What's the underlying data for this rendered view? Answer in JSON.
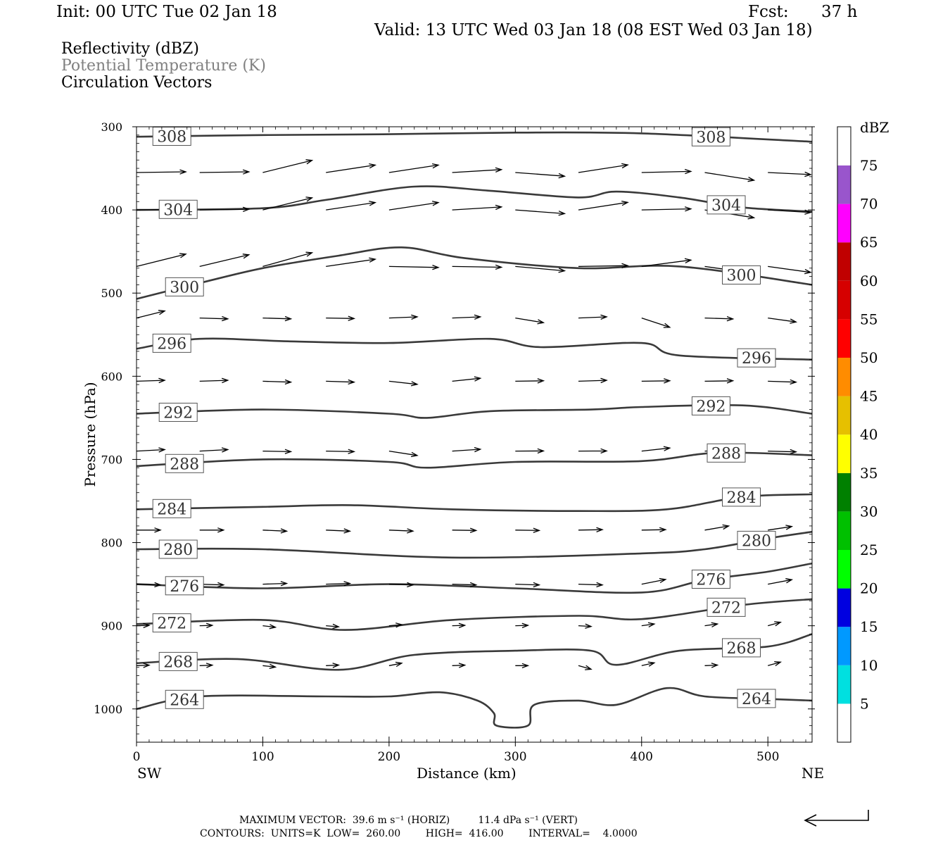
{
  "header": {
    "init": "Init: 00 UTC Tue 02 Jan 18",
    "fcst_label": "Fcst:",
    "fcst_value": "37 h",
    "valid": "Valid: 13 UTC Wed 03 Jan 18 (08 EST Wed 03 Jan 18)",
    "fields": [
      "Reflectivity (dBZ)",
      "Potential Temperature (K)",
      "Circulation Vectors"
    ]
  },
  "footer": {
    "line1": "MAXIMUM VECTOR:  39.6 m s⁻¹ (HORIZ)         11.4 dPa s⁻¹ (VERT)",
    "line2": "CONTOURS:  UNITS=K  LOW=  260.00        HIGH=  416.00        INTERVAL=    4.0000"
  },
  "chart_data": {
    "type": "line",
    "title": "",
    "xlabel": "Distance (km)",
    "ylabel": "Pressure (hPa)",
    "xlim": [
      0,
      535
    ],
    "ylim": [
      1040,
      300
    ],
    "y_reversed": true,
    "x_ticks": [
      0,
      100,
      200,
      300,
      400,
      500
    ],
    "y_ticks": [
      300,
      400,
      500,
      600,
      700,
      800,
      900,
      1000
    ],
    "x_end_labels": {
      "left": "SW",
      "right": "NE"
    },
    "colorbar": {
      "unit": "dBZ",
      "levels": [
        "5",
        "10",
        "15",
        "20",
        "25",
        "30",
        "35",
        "40",
        "45",
        "50",
        "55",
        "60",
        "65",
        "70",
        "75"
      ],
      "colors": [
        "#00e0e0",
        "#0099ff",
        "#0000e0",
        "#00ff00",
        "#00c000",
        "#008000",
        "#ffff00",
        "#e6c000",
        "#ff8c00",
        "#ff0000",
        "#d60000",
        "#c00000",
        "#ff00ff",
        "#9955cc"
      ]
    },
    "series": [
      {
        "label": "308",
        "values": [
          [
            0,
            312
          ],
          [
            100,
            310
          ],
          [
            200,
            309
          ],
          [
            300,
            307
          ],
          [
            400,
            308
          ],
          [
            535,
            318
          ]
        ]
      },
      {
        "label": "304",
        "values": [
          [
            0,
            400
          ],
          [
            100,
            398
          ],
          [
            150,
            388
          ],
          [
            220,
            372
          ],
          [
            280,
            377
          ],
          [
            350,
            385
          ],
          [
            380,
            378
          ],
          [
            430,
            385
          ],
          [
            480,
            397
          ],
          [
            535,
            402
          ]
        ]
      },
      {
        "label": "300",
        "values": [
          [
            0,
            507
          ],
          [
            50,
            488
          ],
          [
            100,
            470
          ],
          [
            160,
            455
          ],
          [
            210,
            445
          ],
          [
            260,
            458
          ],
          [
            350,
            470
          ],
          [
            430,
            468
          ],
          [
            535,
            490
          ]
        ]
      },
      {
        "label": "296",
        "values": [
          [
            0,
            567
          ],
          [
            50,
            555
          ],
          [
            120,
            558
          ],
          [
            200,
            560
          ],
          [
            280,
            555
          ],
          [
            320,
            565
          ],
          [
            400,
            560
          ],
          [
            430,
            575
          ],
          [
            535,
            580
          ]
        ]
      },
      {
        "label": "292",
        "values": [
          [
            0,
            645
          ],
          [
            100,
            640
          ],
          [
            200,
            645
          ],
          [
            230,
            650
          ],
          [
            280,
            642
          ],
          [
            360,
            640
          ],
          [
            400,
            637
          ],
          [
            480,
            635
          ],
          [
            535,
            645
          ]
        ]
      },
      {
        "label": "288",
        "values": [
          [
            0,
            708
          ],
          [
            100,
            700
          ],
          [
            200,
            703
          ],
          [
            230,
            710
          ],
          [
            300,
            703
          ],
          [
            400,
            702
          ],
          [
            460,
            692
          ],
          [
            535,
            695
          ]
        ]
      },
      {
        "label": "284",
        "values": [
          [
            0,
            760
          ],
          [
            100,
            757
          ],
          [
            170,
            755
          ],
          [
            250,
            760
          ],
          [
            350,
            762
          ],
          [
            420,
            760
          ],
          [
            480,
            745
          ],
          [
            535,
            742
          ]
        ]
      },
      {
        "label": "280",
        "values": [
          [
            0,
            808
          ],
          [
            100,
            808
          ],
          [
            250,
            818
          ],
          [
            400,
            813
          ],
          [
            450,
            808
          ],
          [
            500,
            795
          ],
          [
            535,
            787
          ]
        ]
      },
      {
        "label": "276",
        "values": [
          [
            0,
            850
          ],
          [
            100,
            855
          ],
          [
            200,
            850
          ],
          [
            300,
            855
          ],
          [
            400,
            860
          ],
          [
            450,
            845
          ],
          [
            500,
            835
          ],
          [
            535,
            825
          ]
        ]
      },
      {
        "label": "272",
        "values": [
          [
            0,
            898
          ],
          [
            100,
            893
          ],
          [
            165,
            905
          ],
          [
            250,
            893
          ],
          [
            350,
            888
          ],
          [
            400,
            892
          ],
          [
            480,
            875
          ],
          [
            535,
            868
          ]
        ]
      },
      {
        "label": "268",
        "values": [
          [
            0,
            945
          ],
          [
            80,
            940
          ],
          [
            160,
            953
          ],
          [
            220,
            935
          ],
          [
            300,
            930
          ],
          [
            360,
            930
          ],
          [
            380,
            947
          ],
          [
            430,
            930
          ],
          [
            500,
            925
          ],
          [
            535,
            910
          ]
        ]
      },
      {
        "label": "264",
        "values": [
          [
            0,
            1000
          ],
          [
            50,
            985
          ],
          [
            150,
            985
          ],
          [
            200,
            985
          ],
          [
            240,
            980
          ],
          [
            270,
            990
          ],
          [
            283,
            1005
          ],
          [
            285,
            1020
          ],
          [
            310,
            1020
          ],
          [
            315,
            995
          ],
          [
            350,
            990
          ],
          [
            380,
            995
          ],
          [
            420,
            975
          ],
          [
            450,
            985
          ],
          [
            500,
            988
          ],
          [
            535,
            990
          ]
        ]
      }
    ]
  }
}
